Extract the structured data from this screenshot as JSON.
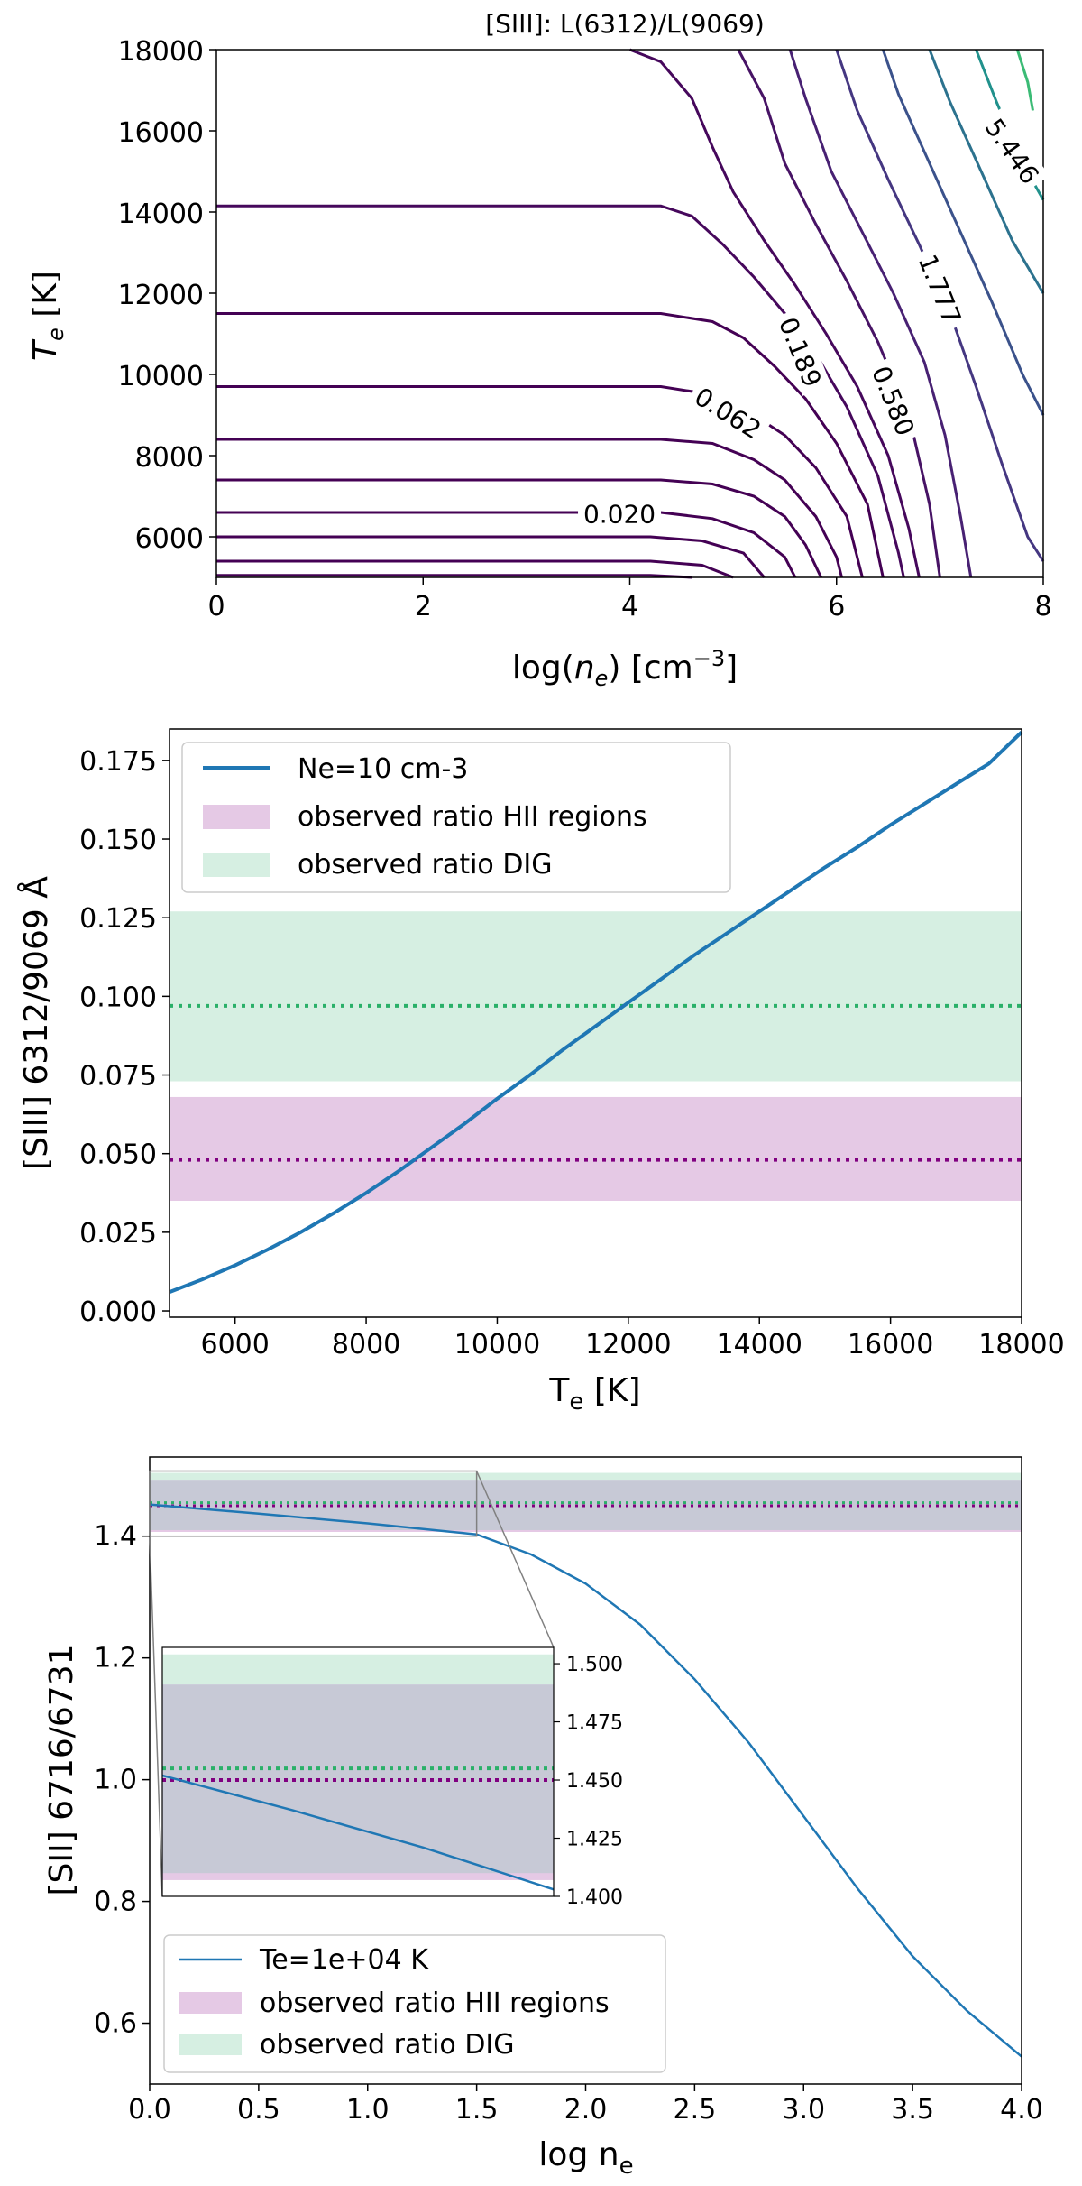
{
  "chart_data": [
    {
      "type": "contour",
      "title": "[SIII]: L(6312)/L(9069)",
      "xlabel_main": "log(",
      "xlabel_var": "n",
      "xlabel_sub": "e",
      "xlabel_unit": ") [cm",
      "xlabel_exp": "−3",
      "xlabel_close": "]",
      "ylabel_var": "T",
      "ylabel_sub": "e",
      "ylabel_unit": " [K]",
      "xlim": [
        0,
        8
      ],
      "ylim": [
        5000,
        18000
      ],
      "xticks": [
        "0",
        "2",
        "4",
        "6",
        "8"
      ],
      "yticks": [
        "6000",
        "8000",
        "10000",
        "12000",
        "14000",
        "16000",
        "18000"
      ],
      "contour_labels": [
        "0.020",
        "0.062",
        "0.189",
        "0.580",
        "1.777",
        "5.446"
      ],
      "contours": [
        {
          "color": "#440154",
          "points": [
            [
              0,
              5050
            ],
            [
              4.2,
              5050
            ],
            [
              4.6,
              5000
            ]
          ]
        },
        {
          "color": "#440154",
          "points": [
            [
              0,
              5400
            ],
            [
              4.2,
              5400
            ],
            [
              4.7,
              5300
            ],
            [
              5.0,
              5000
            ]
          ]
        },
        {
          "color": "#440154",
          "points": [
            [
              0,
              6000
            ],
            [
              4.2,
              6000
            ],
            [
              4.7,
              5900
            ],
            [
              5.1,
              5600
            ],
            [
              5.3,
              5000
            ]
          ]
        },
        {
          "color": "#440154",
          "points": [
            [
              0,
              6600
            ],
            [
              3.2,
              6600
            ],
            [
              4.3,
              6600
            ],
            [
              4.8,
              6450
            ],
            [
              5.2,
              6100
            ],
            [
              5.5,
              5500
            ],
            [
              5.6,
              5000
            ]
          ]
        },
        {
          "color": "#440154",
          "points": [
            [
              0,
              7400
            ],
            [
              4.3,
              7400
            ],
            [
              4.8,
              7300
            ],
            [
              5.2,
              7000
            ],
            [
              5.5,
              6500
            ],
            [
              5.7,
              5800
            ],
            [
              5.85,
              5000
            ]
          ]
        },
        {
          "color": "#440154",
          "points": [
            [
              0,
              8400
            ],
            [
              4.3,
              8400
            ],
            [
              4.8,
              8300
            ],
            [
              5.2,
              7900
            ],
            [
              5.5,
              7400
            ],
            [
              5.8,
              6500
            ],
            [
              6.0,
              5500
            ],
            [
              6.05,
              5000
            ]
          ]
        },
        {
          "color": "#440154",
          "points": [
            [
              0,
              9700
            ],
            [
              4.3,
              9700
            ],
            [
              4.8,
              9500
            ],
            [
              5.2,
              9000
            ],
            [
              5.5,
              8500
            ],
            [
              5.8,
              7700
            ],
            [
              6.1,
              6500
            ],
            [
              6.25,
              5000
            ]
          ]
        },
        {
          "color": "#440154",
          "points": [
            [
              0,
              11500
            ],
            [
              4.3,
              11500
            ],
            [
              4.8,
              11300
            ],
            [
              5.1,
              10900
            ],
            [
              5.4,
              10200
            ],
            [
              5.7,
              9400
            ],
            [
              6.0,
              8300
            ],
            [
              6.3,
              6800
            ],
            [
              6.45,
              5000
            ]
          ]
        },
        {
          "color": "#46085c",
          "points": [
            [
              0,
              14150
            ],
            [
              4.3,
              14150
            ],
            [
              4.6,
              13900
            ],
            [
              4.9,
              13200
            ],
            [
              5.2,
              12400
            ],
            [
              5.5,
              11500
            ],
            [
              5.8,
              10500
            ],
            [
              6.1,
              9200
            ],
            [
              6.4,
              7500
            ],
            [
              6.6,
              5600
            ],
            [
              6.65,
              5000
            ]
          ]
        },
        {
          "color": "#46085c",
          "points": [
            [
              4.0,
              18000
            ],
            [
              4.3,
              17700
            ],
            [
              4.6,
              16800
            ],
            [
              4.8,
              15600
            ],
            [
              5.0,
              14500
            ],
            [
              5.3,
              13300
            ],
            [
              5.6,
              12200
            ],
            [
              5.9,
              11000
            ],
            [
              6.2,
              9700
            ],
            [
              6.5,
              8000
            ],
            [
              6.7,
              6200
            ],
            [
              6.8,
              5000
            ]
          ]
        },
        {
          "color": "#471365",
          "points": [
            [
              5.05,
              18000
            ],
            [
              5.3,
              16800
            ],
            [
              5.5,
              15200
            ],
            [
              5.8,
              13700
            ],
            [
              6.1,
              12300
            ],
            [
              6.4,
              10800
            ],
            [
              6.7,
              9000
            ],
            [
              6.9,
              6800
            ],
            [
              7.0,
              5000
            ]
          ]
        },
        {
          "color": "#482173",
          "points": [
            [
              5.55,
              18000
            ],
            [
              5.7,
              16800
            ],
            [
              5.95,
              15000
            ],
            [
              6.25,
              13500
            ],
            [
              6.55,
              12000
            ],
            [
              6.85,
              10300
            ],
            [
              7.05,
              8500
            ],
            [
              7.2,
              6500
            ],
            [
              7.3,
              5000
            ]
          ]
        },
        {
          "color": "#453781",
          "points": [
            [
              6.0,
              18000
            ],
            [
              6.2,
              16500
            ],
            [
              6.5,
              14800
            ],
            [
              6.8,
              13200
            ],
            [
              7.1,
              11500
            ],
            [
              7.35,
              9700
            ],
            [
              7.6,
              7800
            ],
            [
              7.85,
              6000
            ],
            [
              8.0,
              5400
            ]
          ]
        },
        {
          "color": "#3b528b",
          "points": [
            [
              6.45,
              18000
            ],
            [
              6.6,
              16900
            ],
            [
              6.9,
              15200
            ],
            [
              7.2,
              13500
            ],
            [
              7.5,
              11800
            ],
            [
              7.8,
              10000
            ],
            [
              8.0,
              9000
            ]
          ]
        },
        {
          "color": "#2c728e",
          "points": [
            [
              6.9,
              18000
            ],
            [
              7.1,
              16700
            ],
            [
              7.4,
              15000
            ],
            [
              7.7,
              13300
            ],
            [
              8.0,
              12000
            ]
          ]
        },
        {
          "color": "#21918c",
          "points": [
            [
              7.35,
              18000
            ],
            [
              7.55,
              16700
            ],
            [
              7.8,
              15200
            ],
            [
              8.0,
              14300
            ]
          ]
        },
        {
          "color": "#3bbb75",
          "points": [
            [
              7.75,
              18000
            ],
            [
              7.85,
              17200
            ],
            [
              7.9,
              16500
            ]
          ]
        }
      ]
    },
    {
      "type": "line",
      "xlabel_main": "T",
      "xlabel_sub": "e",
      "xlabel_unit": " [K]",
      "ylabel": "[SIII] 6312/9069 Å",
      "xlim": [
        5000,
        18000
      ],
      "ylim": [
        -0.002,
        0.185
      ],
      "xticks": [
        "6000",
        "8000",
        "10000",
        "12000",
        "14000",
        "16000",
        "18000"
      ],
      "yticks": [
        "0.000",
        "0.025",
        "0.050",
        "0.075",
        "0.100",
        "0.125",
        "0.150",
        "0.175"
      ],
      "series": [
        {
          "name": "Ne=10 cm-3",
          "color": "#1f77b4",
          "x": [
            5000,
            5500,
            6000,
            6500,
            7000,
            7500,
            8000,
            8500,
            9000,
            9500,
            10000,
            10500,
            11000,
            11500,
            12000,
            12500,
            13000,
            13500,
            14000,
            14500,
            15000,
            15500,
            16000,
            16500,
            17000,
            17500,
            18000
          ],
          "y": [
            0.006,
            0.01,
            0.0145,
            0.0195,
            0.025,
            0.031,
            0.0375,
            0.0445,
            0.052,
            0.0595,
            0.0675,
            0.075,
            0.083,
            0.0905,
            0.098,
            0.1055,
            0.113,
            0.12,
            0.127,
            0.134,
            0.141,
            0.1475,
            0.1545,
            0.161,
            0.1675,
            0.174,
            0.184
          ]
        }
      ],
      "bands": [
        {
          "name": "observed ratio HII regions",
          "range": [
            0.035,
            0.068
          ],
          "median": 0.048,
          "fill": "#e5c9e5",
          "line": "#800080"
        },
        {
          "name": "observed ratio DIG",
          "range": [
            0.073,
            0.127
          ],
          "median": 0.097,
          "fill": "#d6efe2",
          "line": "#2ab069"
        }
      ],
      "legend": [
        "Ne=10 cm-3",
        "observed ratio HII regions",
        "observed ratio DIG"
      ]
    },
    {
      "type": "line",
      "xlabel_main": "log n",
      "xlabel_sub": "e",
      "ylabel": "[SII] 6716/6731",
      "xlim": [
        0,
        4
      ],
      "ylim": [
        0.5,
        1.53
      ],
      "xticks": [
        "0.0",
        "0.5",
        "1.0",
        "1.5",
        "2.0",
        "2.5",
        "3.0",
        "3.5",
        "4.0"
      ],
      "yticks": [
        "0.6",
        "0.8",
        "1.0",
        "1.2",
        "1.4"
      ],
      "series": [
        {
          "name": "Te=1e+04 K",
          "color": "#1f77b4",
          "x": [
            0,
            0.5,
            1.0,
            1.5,
            1.75,
            2.0,
            2.25,
            2.5,
            2.75,
            3.0,
            3.25,
            3.5,
            3.75,
            4.0
          ],
          "y": [
            1.452,
            1.437,
            1.421,
            1.403,
            1.37,
            1.322,
            1.255,
            1.165,
            1.06,
            0.94,
            0.82,
            0.71,
            0.62,
            0.545
          ]
        }
      ],
      "bands": [
        {
          "name": "observed ratio HII regions",
          "range": [
            1.407,
            1.491
          ],
          "median": 1.45,
          "fill": "#e5c9e5",
          "line": "#800080"
        },
        {
          "name": "observed ratio DIG",
          "range": [
            1.41,
            1.504
          ],
          "median": 1.455,
          "fill": "#d6efe2",
          "line": "#2ab069"
        }
      ],
      "overlap_fill": "#c7c9d6",
      "inset": {
        "xlim": [
          0,
          1.5
        ],
        "ylim": [
          1.4,
          1.507
        ],
        "yticks": [
          "1.400",
          "1.425",
          "1.450",
          "1.475",
          "1.500"
        ]
      },
      "legend": [
        "Te=1e+04 K",
        "observed ratio HII regions",
        "observed ratio DIG"
      ]
    }
  ]
}
